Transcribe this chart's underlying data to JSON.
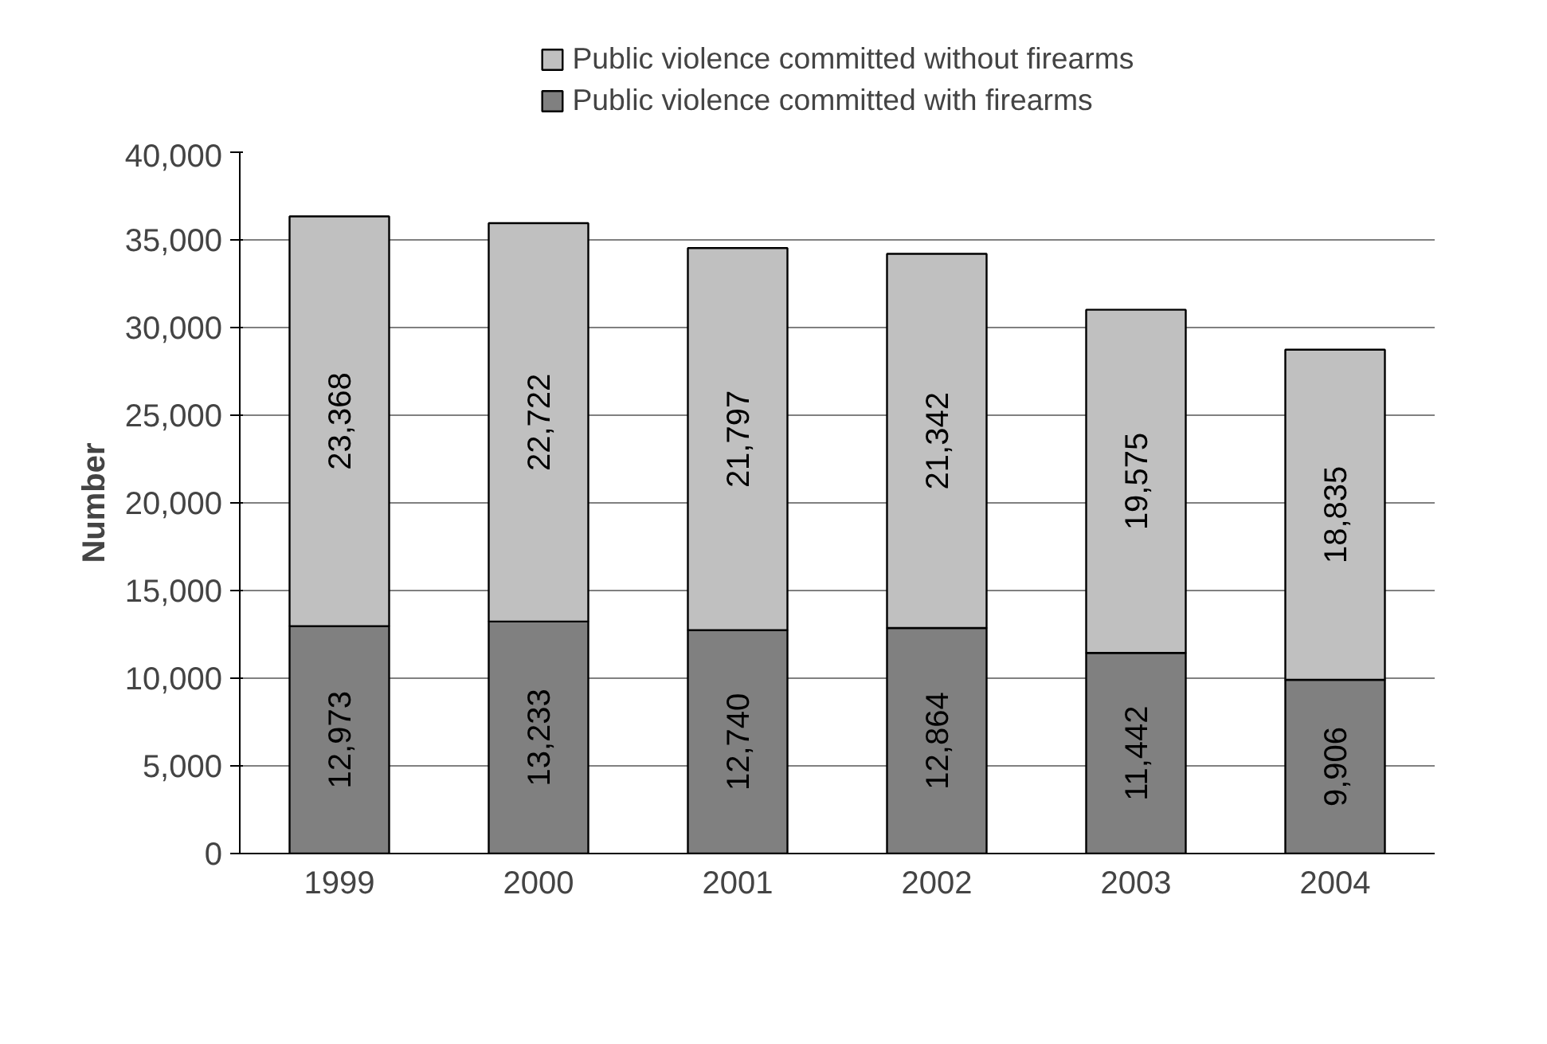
{
  "chart_data": {
    "type": "bar",
    "stacked": true,
    "ylabel": "Number",
    "categories": [
      "1999",
      "2000",
      "2001",
      "2002",
      "2003",
      "2004"
    ],
    "series": [
      {
        "name": "Public violence committed with firearms",
        "color": "#808080",
        "values": [
          12973,
          13233,
          12740,
          12864,
          11442,
          9906
        ],
        "value_labels": [
          "12,973",
          "13,233",
          "12,740",
          "12,864",
          "11,442",
          "9,906"
        ]
      },
      {
        "name": "Public violence committed without firearms",
        "color": "#c0c0c0",
        "values": [
          23368,
          22722,
          21797,
          21342,
          19575,
          18835
        ],
        "value_labels": [
          "23,368",
          "22,722",
          "21,797",
          "21,342",
          "19,575",
          "18,835"
        ]
      }
    ],
    "ylim": [
      0,
      40000
    ],
    "yticks": [
      0,
      {
        "value": 5000,
        "label": "5,000"
      },
      {
        "value": 10000,
        "label": "10,000"
      },
      {
        "value": 15000,
        "label": "15,000"
      },
      {
        "value": 20000,
        "label": "20,000"
      },
      {
        "value": 25000,
        "label": "25,000"
      },
      {
        "value": 30000,
        "label": "30,000"
      },
      {
        "value": 35000,
        "label": "35,000"
      },
      {
        "value": 40000,
        "label": "40,000"
      }
    ],
    "grid": "y",
    "legend": "top"
  }
}
